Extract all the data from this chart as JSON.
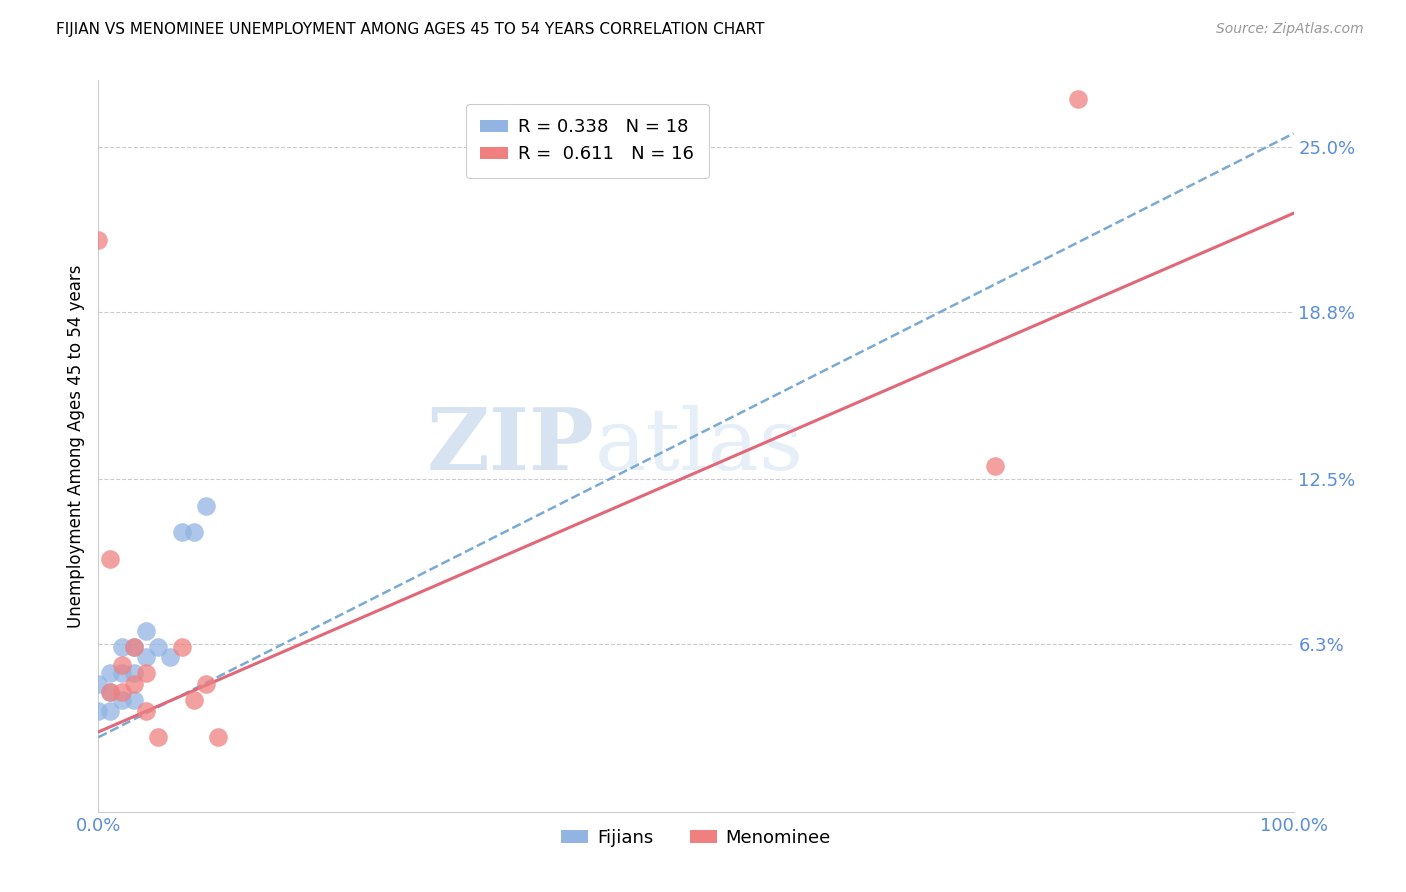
{
  "title": "FIJIAN VS MENOMINEE UNEMPLOYMENT AMONG AGES 45 TO 54 YEARS CORRELATION CHART",
  "source": "Source: ZipAtlas.com",
  "ylabel": "Unemployment Among Ages 45 to 54 years",
  "ytick_labels": [
    "6.3%",
    "12.5%",
    "18.8%",
    "25.0%"
  ],
  "ytick_values": [
    0.063,
    0.125,
    0.188,
    0.25
  ],
  "xlim": [
    0,
    1.0
  ],
  "ylim": [
    0.0,
    0.275
  ],
  "fijians_R": 0.338,
  "fijians_N": 18,
  "menominee_R": 0.611,
  "menominee_N": 16,
  "fijians_color": "#92b4e3",
  "menominee_color": "#f08080",
  "fijians_line_color": "#7aaad4",
  "menominee_line_color": "#e06878",
  "watermark_zip": "ZIP",
  "watermark_atlas": "atlas",
  "fijians_line_x": [
    0.0,
    1.0
  ],
  "fijians_line_y": [
    0.028,
    0.255
  ],
  "menominee_line_x": [
    0.0,
    1.0
  ],
  "menominee_line_y": [
    0.03,
    0.225
  ],
  "fijians_x": [
    0.0,
    0.0,
    0.01,
    0.01,
    0.01,
    0.02,
    0.02,
    0.02,
    0.03,
    0.03,
    0.03,
    0.04,
    0.04,
    0.05,
    0.06,
    0.07,
    0.08,
    0.09
  ],
  "fijians_y": [
    0.048,
    0.038,
    0.052,
    0.045,
    0.038,
    0.062,
    0.052,
    0.042,
    0.062,
    0.052,
    0.042,
    0.068,
    0.058,
    0.062,
    0.058,
    0.105,
    0.105,
    0.115
  ],
  "menominee_x": [
    0.0,
    0.01,
    0.01,
    0.02,
    0.02,
    0.03,
    0.03,
    0.04,
    0.04,
    0.05,
    0.07,
    0.08,
    0.09,
    0.1,
    0.75,
    0.82
  ],
  "menominee_y": [
    0.215,
    0.095,
    0.045,
    0.055,
    0.045,
    0.062,
    0.048,
    0.052,
    0.038,
    0.028,
    0.062,
    0.042,
    0.048,
    0.028,
    0.13,
    0.268
  ]
}
